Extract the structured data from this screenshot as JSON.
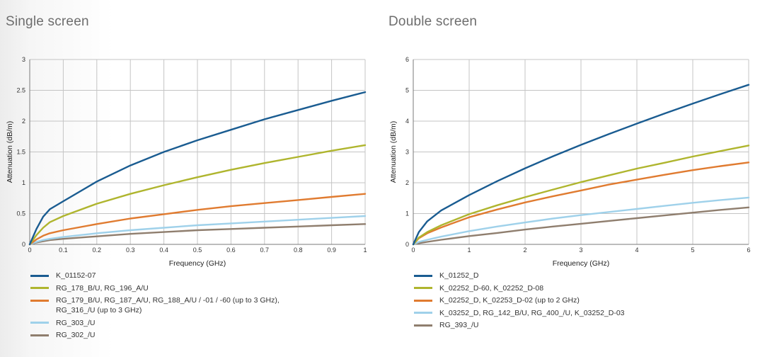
{
  "chart_data": [
    {
      "type": "line",
      "title": "Single screen",
      "xlabel": "Frequency (GHz)",
      "ylabel": "Attenuation (dB/m)",
      "xlim": [
        0,
        1
      ],
      "ylim": [
        0,
        3
      ],
      "x_ticks": [
        0,
        0.1,
        0.2,
        0.3,
        0.4,
        0.5,
        0.6,
        0.7,
        0.8,
        0.9,
        1
      ],
      "x_tick_labels": [
        "0",
        "0.1",
        "0.2",
        "0.3",
        "0.4",
        "0.5",
        "0.6",
        "0.7",
        "0.8",
        "0.9",
        "1"
      ],
      "y_ticks": [
        0,
        0.5,
        1,
        1.5,
        2,
        2.5,
        3
      ],
      "y_tick_labels": [
        "0",
        "0.5",
        "1",
        "1.5",
        "2",
        "2.5",
        "3"
      ],
      "grid": true,
      "legend": "bottom",
      "series": [
        {
          "name": "K_01152-07",
          "color": "#1a5c91",
          "x": [
            0,
            0.02,
            0.04,
            0.06,
            0.1,
            0.2,
            0.3,
            0.4,
            0.5,
            0.6,
            0.7,
            0.8,
            0.9,
            1.0
          ],
          "y": [
            0,
            0.25,
            0.45,
            0.57,
            0.7,
            1.02,
            1.28,
            1.5,
            1.69,
            1.86,
            2.03,
            2.18,
            2.33,
            2.47
          ]
        },
        {
          "name": "RG_178_B/U, RG_196_A/U",
          "color": "#afb52e",
          "x": [
            0,
            0.02,
            0.04,
            0.06,
            0.1,
            0.2,
            0.3,
            0.4,
            0.5,
            0.6,
            0.7,
            0.8,
            0.9,
            1.0
          ],
          "y": [
            0,
            0.15,
            0.27,
            0.36,
            0.46,
            0.66,
            0.82,
            0.96,
            1.09,
            1.21,
            1.32,
            1.42,
            1.52,
            1.61
          ]
        },
        {
          "name": "RG_179_B/U, RG_187_A/U, RG_188_A/U / -01 / -60 (up to 3 GHz),\nRG_316_/U (up to 3 GHz)",
          "color": "#e07b30",
          "x": [
            0,
            0.02,
            0.04,
            0.06,
            0.1,
            0.2,
            0.3,
            0.4,
            0.5,
            0.6,
            0.7,
            0.8,
            0.9,
            1.0
          ],
          "y": [
            0,
            0.08,
            0.14,
            0.18,
            0.23,
            0.33,
            0.42,
            0.49,
            0.56,
            0.62,
            0.67,
            0.72,
            0.77,
            0.82
          ]
        },
        {
          "name": "RG_303_/U",
          "color": "#9fd1ea",
          "x": [
            0,
            0.02,
            0.04,
            0.06,
            0.1,
            0.2,
            0.3,
            0.4,
            0.5,
            0.6,
            0.7,
            0.8,
            0.9,
            1.0
          ],
          "y": [
            0,
            0.04,
            0.07,
            0.09,
            0.12,
            0.18,
            0.23,
            0.27,
            0.31,
            0.34,
            0.37,
            0.4,
            0.43,
            0.46
          ]
        },
        {
          "name": "RG_302_/U",
          "color": "#8f7e6e",
          "x": [
            0,
            0.02,
            0.04,
            0.06,
            0.1,
            0.2,
            0.3,
            0.4,
            0.5,
            0.6,
            0.7,
            0.8,
            0.9,
            1.0
          ],
          "y": [
            0,
            0.03,
            0.05,
            0.07,
            0.09,
            0.13,
            0.17,
            0.2,
            0.23,
            0.25,
            0.27,
            0.29,
            0.31,
            0.33
          ]
        }
      ]
    },
    {
      "type": "line",
      "title": "Double screen",
      "xlabel": "Frequency (GHz)",
      "ylabel": "Attenuation (dB/m)",
      "xlim": [
        0,
        6
      ],
      "ylim": [
        0,
        6
      ],
      "x_ticks": [
        0,
        1,
        2,
        3,
        4,
        5,
        6
      ],
      "x_tick_labels": [
        "0",
        "1",
        "2",
        "3",
        "4",
        "5",
        "6"
      ],
      "y_ticks": [
        0,
        1,
        2,
        3,
        4,
        5,
        6
      ],
      "y_tick_labels": [
        "0",
        "1",
        "2",
        "3",
        "4",
        "5",
        "6"
      ],
      "grid": true,
      "legend": "bottom",
      "series": [
        {
          "name": "K_01252_D",
          "color": "#1a5c91",
          "x": [
            0,
            0.1,
            0.25,
            0.5,
            1,
            1.5,
            2,
            2.5,
            3,
            3.5,
            4,
            4.5,
            5,
            5.5,
            6
          ],
          "y": [
            0,
            0.4,
            0.75,
            1.1,
            1.6,
            2.05,
            2.47,
            2.86,
            3.23,
            3.58,
            3.92,
            4.25,
            4.57,
            4.88,
            5.18
          ]
        },
        {
          "name": "K_02252_D-60, K_02252_D-08",
          "color": "#afb52e",
          "x": [
            0,
            0.1,
            0.25,
            0.5,
            1,
            1.5,
            2,
            2.5,
            3,
            3.5,
            4,
            4.5,
            5,
            5.5,
            6
          ],
          "y": [
            0,
            0.22,
            0.4,
            0.62,
            0.98,
            1.27,
            1.53,
            1.78,
            2.02,
            2.24,
            2.46,
            2.65,
            2.85,
            3.03,
            3.21
          ]
        },
        {
          "name": "K_02252_D, K_02253_D-02 (up to 2 GHz)",
          "color": "#e07b30",
          "x": [
            0,
            0.1,
            0.25,
            0.5,
            1,
            1.5,
            2,
            2.5,
            3,
            3.5,
            4,
            4.5,
            5,
            5.5,
            6
          ],
          "y": [
            0,
            0.2,
            0.36,
            0.55,
            0.88,
            1.13,
            1.36,
            1.56,
            1.75,
            1.94,
            2.1,
            2.26,
            2.41,
            2.54,
            2.66
          ]
        },
        {
          "name": "K_03252_D, RG_142_B/U, RG_400_/U, K_03252_D-03",
          "color": "#9fd1ea",
          "x": [
            0,
            0.1,
            0.25,
            0.5,
            1,
            1.5,
            2,
            2.5,
            3,
            3.5,
            4,
            4.5,
            5,
            5.5,
            6
          ],
          "y": [
            0,
            0.08,
            0.15,
            0.25,
            0.43,
            0.58,
            0.71,
            0.84,
            0.95,
            1.05,
            1.15,
            1.25,
            1.35,
            1.44,
            1.52
          ]
        },
        {
          "name": "RG_393_/U",
          "color": "#8f7e6e",
          "x": [
            0,
            0.1,
            0.25,
            0.5,
            1,
            1.5,
            2,
            2.5,
            3,
            3.5,
            4,
            4.5,
            5,
            5.5,
            6
          ],
          "y": [
            0,
            0.04,
            0.08,
            0.15,
            0.27,
            0.37,
            0.48,
            0.58,
            0.67,
            0.76,
            0.85,
            0.94,
            1.03,
            1.12,
            1.2
          ]
        }
      ]
    }
  ]
}
